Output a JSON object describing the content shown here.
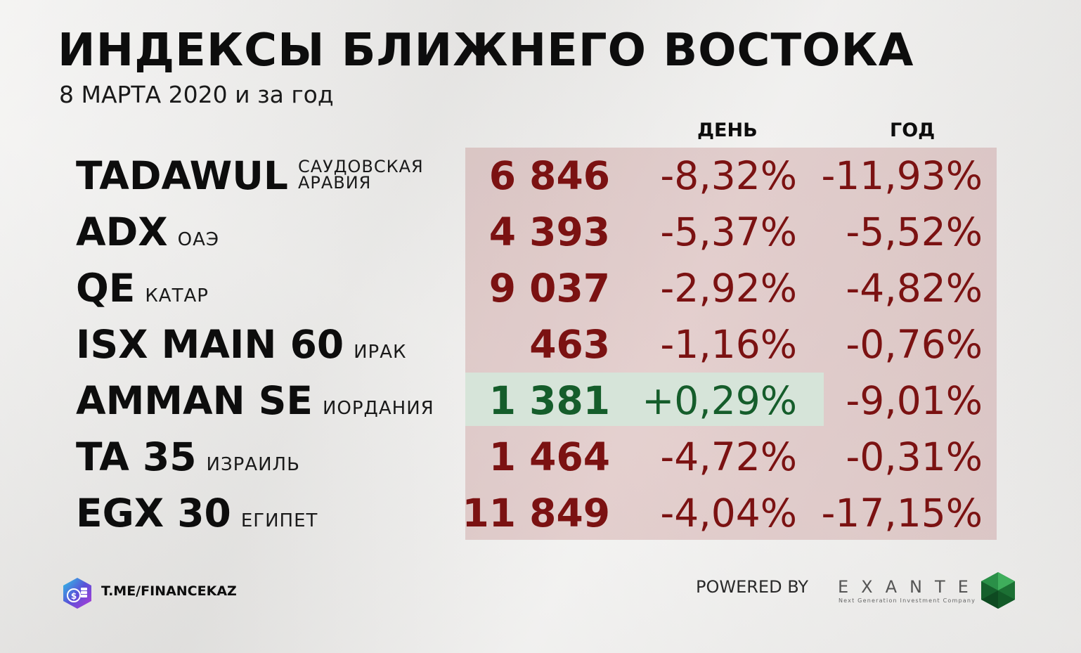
{
  "header": {
    "title": "ИНДЕКСЫ БЛИЖНЕГО ВОСТОКА",
    "subtitle": "8 МАРТА 2020 и за год"
  },
  "columns": {
    "day": "ДЕНЬ",
    "year": "ГОД"
  },
  "rows": [
    {
      "name": "TADAWUL",
      "country_line1": "САУДОВСКАЯ",
      "country_line2": "АРАВИЯ",
      "value": "6 846",
      "day": "-8,32%",
      "year": "-11,93%"
    },
    {
      "name": "ADX",
      "country": "ОАЭ",
      "value": "4 393",
      "day": "-5,37%",
      "year": "-5,52%"
    },
    {
      "name": "QE",
      "country": "КАТАР",
      "value": "9 037",
      "day": "-2,92%",
      "year": "-4,82%"
    },
    {
      "name": "ISX MAIN 60",
      "country": "ИРАК",
      "value": "463",
      "day": "-1,16%",
      "year": "-0,76%"
    },
    {
      "name": "AMMAN SE",
      "country": "ИОРДАНИЯ",
      "value": "1 381",
      "day": "+0,29%",
      "year": "-9,01%"
    },
    {
      "name": "TA 35",
      "country": "ИЗРАИЛЬ",
      "value": "1 464",
      "day": "-4,72%",
      "year": "-0,31%"
    },
    {
      "name": "EGX 30",
      "country": "ЕГИПЕТ",
      "value": "11 849",
      "day": "-4,04%",
      "year": "-17,15%"
    }
  ],
  "colors": {
    "negative": "#7b1212",
    "positive": "#155d2b",
    "table_bg": "#e3cfcc",
    "highlight_bg": "#d6e4d9"
  },
  "footer": {
    "channel_logo_icon": "coins-hexagon-icon",
    "channel": "T.ME/FINANCEKAZ",
    "powered_by": "POWERED BY",
    "brand": "EXANTE",
    "brand_tagline": "Next Generation Investment Company",
    "brand_logo_icon": "green-polyhedron-icon"
  }
}
